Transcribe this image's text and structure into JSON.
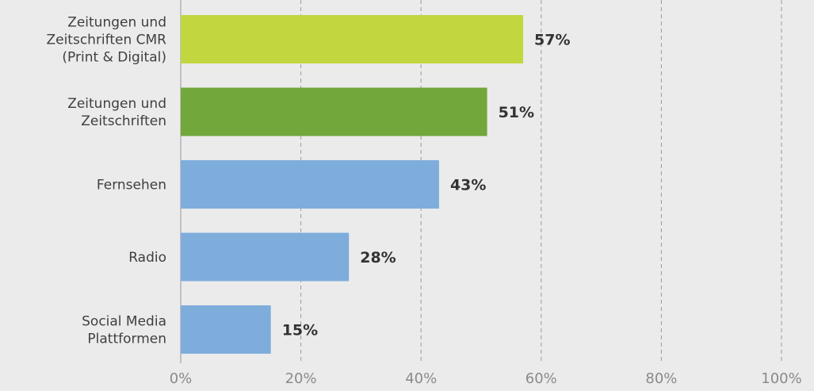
{
  "chart_data": {
    "type": "bar",
    "orientation": "horizontal",
    "categories": [
      [
        "Zeitungen und",
        "Zeitschriften CMR",
        "(Print & Digital)"
      ],
      [
        "Zeitungen und",
        "Zeitschriften"
      ],
      [
        "Fernsehen"
      ],
      [
        "Radio"
      ],
      [
        "Social Media",
        "Plattformen"
      ]
    ],
    "values": [
      57,
      51,
      43,
      28,
      15
    ],
    "value_labels": [
      "57%",
      "51%",
      "43%",
      "28%",
      "15%"
    ],
    "bar_colors": [
      "#c2d640",
      "#72a73c",
      "#7eaddc",
      "#7eaddc",
      "#7eaddc"
    ],
    "xlim": [
      0,
      100
    ],
    "xticks": [
      0,
      20,
      40,
      60,
      80,
      100
    ],
    "xtick_labels": [
      "0%",
      "20%",
      "40%",
      "60%",
      "80%",
      "100%"
    ],
    "grid": true,
    "grid_style": "dashed vertical",
    "title": "",
    "xlabel": "",
    "ylabel": "",
    "legend": "none"
  }
}
